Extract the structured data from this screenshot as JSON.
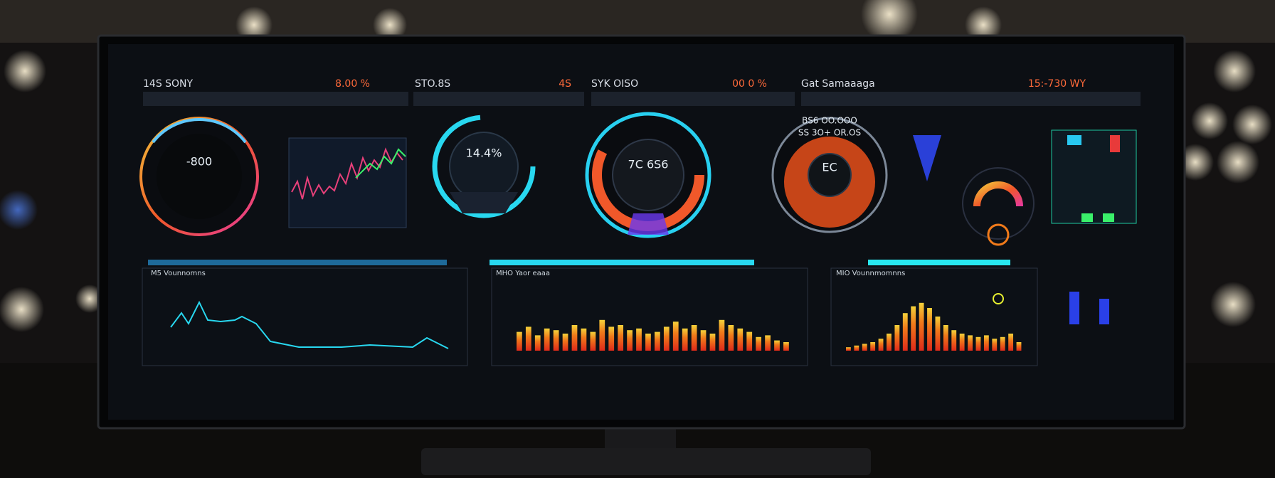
{
  "header": {
    "items": [
      {
        "label": "14S SONY",
        "value": "8.00 %"
      },
      {
        "label": "STO.8S",
        "value": "4S"
      },
      {
        "label": "SYK OISO",
        "value": "00 0 %"
      },
      {
        "label": "Gat Samaaaga",
        "value": "15:-730 WY"
      }
    ]
  },
  "gauges": [
    {
      "label": "-800"
    },
    {
      "label": "14.4%"
    },
    {
      "label": "7C 6S6"
    },
    {
      "label": "EC",
      "top": "BS6 OO.OOO",
      "sublabel": "SS 3O+ OR.OS"
    }
  ],
  "panels": [
    {
      "title": "M5 Vounnomns"
    },
    {
      "title": "MHO Yaor eaaa",
      "bars": [
        22,
        28,
        18,
        26,
        24,
        20,
        30,
        26,
        22,
        36,
        28,
        30,
        24,
        26,
        20,
        22,
        28,
        34,
        26,
        30,
        24,
        20,
        36,
        30,
        26,
        22,
        16,
        18,
        12,
        10
      ]
    },
    {
      "title": "MIO Vounnmomnns",
      "bars": [
        4,
        6,
        8,
        10,
        14,
        20,
        30,
        44,
        52,
        56,
        50,
        40,
        30,
        24,
        20,
        18,
        16,
        18,
        14,
        16,
        20,
        10
      ]
    }
  ]
}
